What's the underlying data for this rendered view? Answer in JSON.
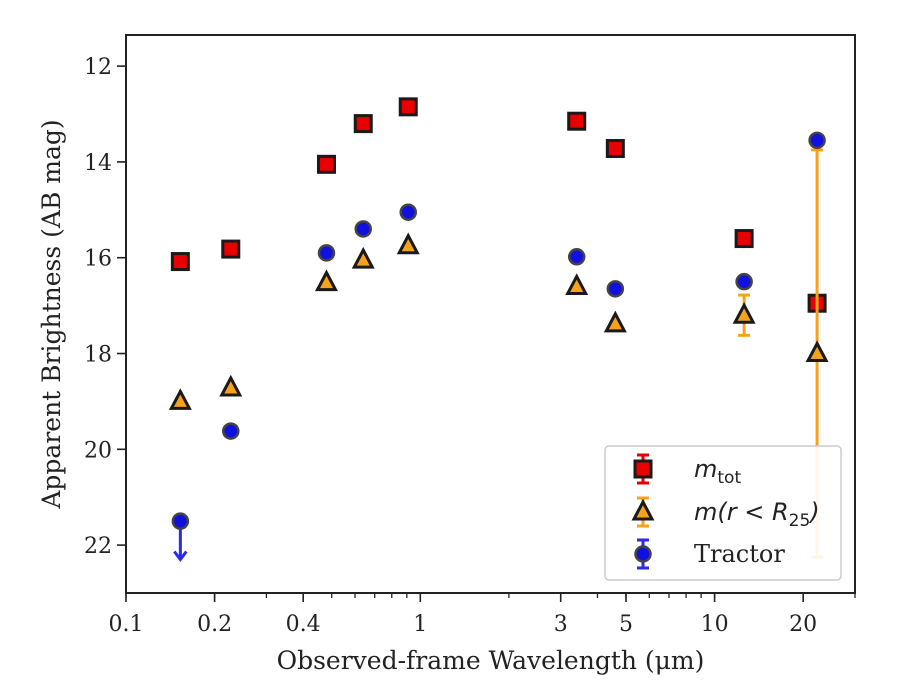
{
  "chart_data": {
    "type": "scatter",
    "xlabel": "Observed-frame Wavelength (μm)",
    "ylabel": "Apparent Brightness (AB mag)",
    "xscale": "log",
    "xlim": [
      0.1,
      30
    ],
    "ylim": [
      23.0,
      11.35
    ],
    "y_inverted": true,
    "x_ticks": [
      0.1,
      0.2,
      0.4,
      1,
      3,
      5,
      10,
      20
    ],
    "x_tick_labels": [
      "0.1",
      "0.2",
      "0.4",
      "1",
      "3",
      "5",
      "10",
      "20"
    ],
    "y_ticks": [
      12,
      14,
      16,
      18,
      20,
      22
    ],
    "y_tick_labels": [
      "12",
      "14",
      "16",
      "18",
      "20",
      "22"
    ],
    "legend_position": "lower-right",
    "grid": false,
    "series": [
      {
        "key": "mtot",
        "legend_base": "m",
        "legend_sub": "tot",
        "marker": "square",
        "face_color": "#e80000",
        "edge_color": "#1a1a1a",
        "err_color": "#e80000",
        "points": [
          {
            "x": 0.153,
            "y": 16.08,
            "err": 0.0
          },
          {
            "x": 0.227,
            "y": 15.82,
            "err": 0.0
          },
          {
            "x": 0.48,
            "y": 14.05,
            "err": 0.0
          },
          {
            "x": 0.64,
            "y": 13.2,
            "err": 0.0
          },
          {
            "x": 0.91,
            "y": 12.85,
            "err": 0.0
          },
          {
            "x": 3.4,
            "y": 13.15,
            "err": 0.0
          },
          {
            "x": 4.6,
            "y": 13.72,
            "err": 0.0
          },
          {
            "x": 12.6,
            "y": 15.6,
            "err": 0.0
          },
          {
            "x": 22.3,
            "y": 16.95,
            "err": 0.0
          }
        ]
      },
      {
        "key": "mr25",
        "legend_base": "m(r < R",
        "legend_sub": "25",
        "legend_tail": ")",
        "marker": "triangle",
        "face_color": "#f5a21c",
        "edge_color": "#1a1a1a",
        "err_color": "#f5a21c",
        "points": [
          {
            "x": 0.153,
            "y": 19.0,
            "err": 0.0
          },
          {
            "x": 0.227,
            "y": 18.72,
            "err": 0.0
          },
          {
            "x": 0.48,
            "y": 16.52,
            "err": 0.0
          },
          {
            "x": 0.64,
            "y": 16.05,
            "err": 0.0
          },
          {
            "x": 0.91,
            "y": 15.75,
            "err": 0.0
          },
          {
            "x": 3.4,
            "y": 16.6,
            "err": 0.0
          },
          {
            "x": 4.6,
            "y": 17.38,
            "err": 0.0
          },
          {
            "x": 12.6,
            "y": 17.2,
            "err": 0.42
          },
          {
            "x": 22.3,
            "y": 18.0,
            "err": 4.25
          }
        ]
      },
      {
        "key": "tractor",
        "legend_base": "Tractor",
        "marker": "circle",
        "face_color": "#1010e0",
        "edge_color": "#444444",
        "err_color": "#2a2ae8",
        "points": [
          {
            "x": 0.153,
            "y": 21.5,
            "err": 0.0,
            "upper_limit": true
          },
          {
            "x": 0.227,
            "y": 19.62,
            "err": 0.0
          },
          {
            "x": 0.48,
            "y": 15.9,
            "err": 0.0
          },
          {
            "x": 0.64,
            "y": 15.4,
            "err": 0.0
          },
          {
            "x": 0.91,
            "y": 15.05,
            "err": 0.0
          },
          {
            "x": 3.4,
            "y": 15.98,
            "err": 0.0
          },
          {
            "x": 4.6,
            "y": 16.65,
            "err": 0.0
          },
          {
            "x": 12.6,
            "y": 16.5,
            "err": 0.0
          },
          {
            "x": 22.3,
            "y": 13.55,
            "err": 0.0
          }
        ]
      }
    ]
  }
}
